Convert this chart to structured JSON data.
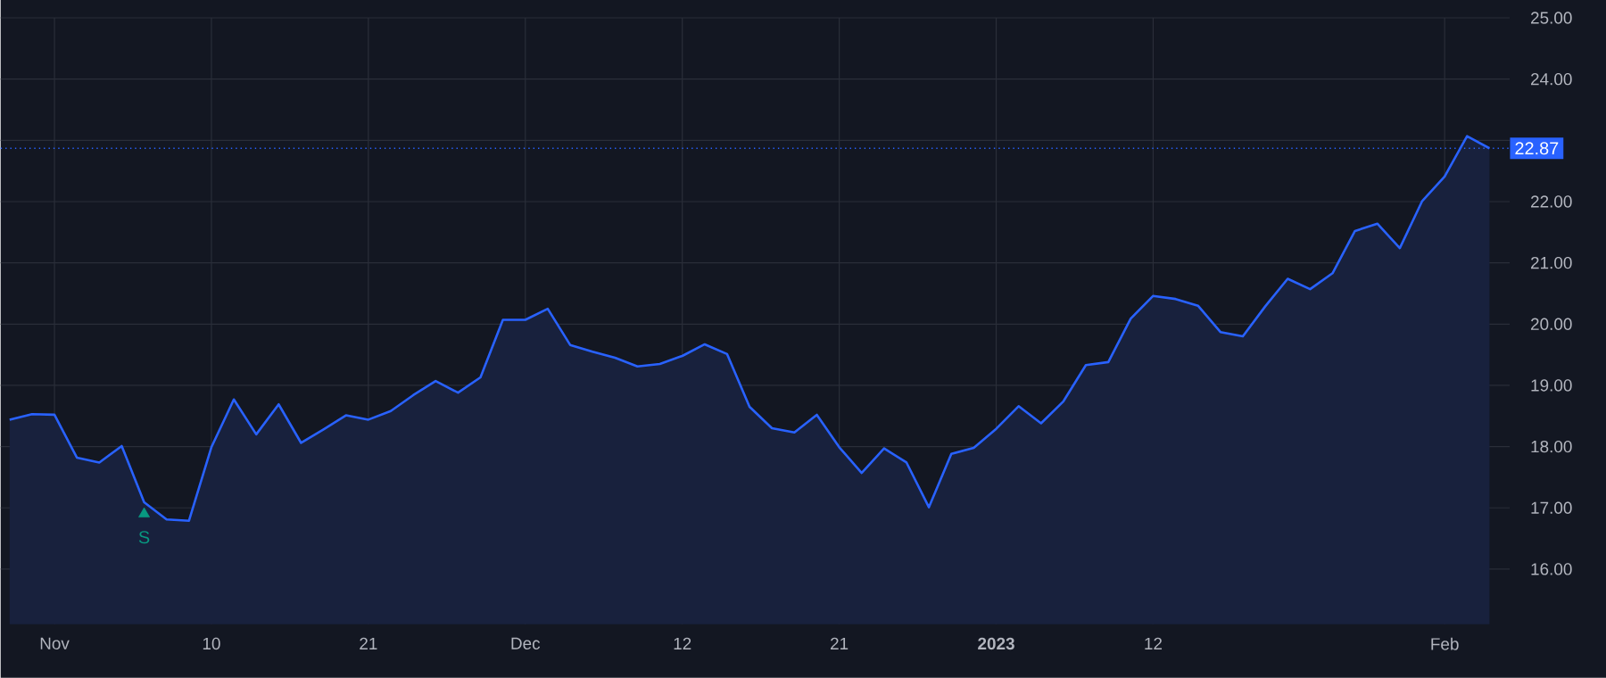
{
  "chart_data": {
    "type": "area",
    "categories": [
      null,
      null,
      "Nov",
      null,
      null,
      null,
      null,
      null,
      null,
      "10",
      null,
      null,
      null,
      null,
      null,
      null,
      "21",
      null,
      null,
      null,
      null,
      null,
      null,
      "Dec",
      null,
      null,
      null,
      null,
      null,
      null,
      "12",
      null,
      null,
      null,
      null,
      null,
      null,
      "21",
      null,
      null,
      null,
      null,
      null,
      null,
      "**2023**",
      null,
      null,
      null,
      null,
      null,
      null,
      "12",
      null,
      null,
      null,
      null,
      null,
      null,
      null,
      null,
      null,
      null,
      null,
      null,
      "Feb",
      null,
      null
    ],
    "series": [
      {
        "color": "#2962ff",
        "values": [
          18.44,
          18.53,
          18.52,
          17.82,
          17.74,
          18.01,
          17.09,
          16.81,
          16.79,
          17.99,
          18.77,
          18.2,
          18.69,
          18.06,
          18.28,
          18.51,
          18.44,
          18.58,
          18.84,
          19.07,
          18.88,
          19.13,
          20.07,
          20.07,
          20.25,
          19.66,
          19.55,
          19.45,
          19.31,
          19.35,
          19.48,
          19.67,
          19.51,
          18.65,
          18.3,
          18.23,
          18.52,
          17.99,
          17.57,
          17.97,
          17.74,
          17.01,
          17.88,
          17.98,
          18.29,
          18.66,
          18.38,
          18.74,
          19.33,
          19.38,
          20.09,
          20.46,
          20.41,
          20.3,
          19.87,
          19.8,
          20.29,
          20.74,
          20.57,
          20.83,
          21.52,
          21.64,
          21.24,
          22.01,
          22.41,
          23.07,
          22.87
        ]
      },
      {
        "type": "scatter",
        "name": "S",
        "color": "#089981",
        "marker": "triangle",
        "values": [
          null,
          null,
          null,
          null,
          null,
          null,
          16.9,
          null,
          null,
          null,
          null,
          null,
          null,
          null,
          null,
          null,
          null,
          null,
          null,
          null,
          null,
          null,
          null,
          null,
          null,
          null,
          null,
          null,
          null,
          null,
          null,
          null,
          null,
          null,
          null,
          null,
          null,
          null,
          null,
          null,
          null,
          null,
          null,
          null,
          null,
          null,
          null,
          null,
          null,
          null,
          null,
          null,
          null,
          null,
          null,
          null,
          null,
          null,
          null,
          null,
          null,
          null,
          null,
          null,
          null,
          null,
          null
        ]
      }
    ],
    "ylim": [
      15.1,
      25.0
    ],
    "yticks": [
      {
        "value": 16,
        "label": "16.00"
      },
      {
        "value": 17,
        "label": "17.00"
      },
      {
        "value": 18,
        "label": "18.00"
      },
      {
        "value": 19,
        "label": "19.00"
      },
      {
        "value": 20,
        "label": "20.00"
      },
      {
        "value": 21,
        "label": "21.00"
      },
      {
        "value": 22,
        "label": "22.00"
      },
      {
        "value": 23,
        "label": null
      },
      {
        "value": 24,
        "label": "24.00"
      },
      {
        "value": 25,
        "label": "25.00"
      }
    ],
    "grid": true,
    "ref_lines": [
      {
        "axis": "y",
        "value": 22.87,
        "label": "22.87",
        "color": "#2962ff",
        "line_style": "dotted"
      }
    ]
  }
}
